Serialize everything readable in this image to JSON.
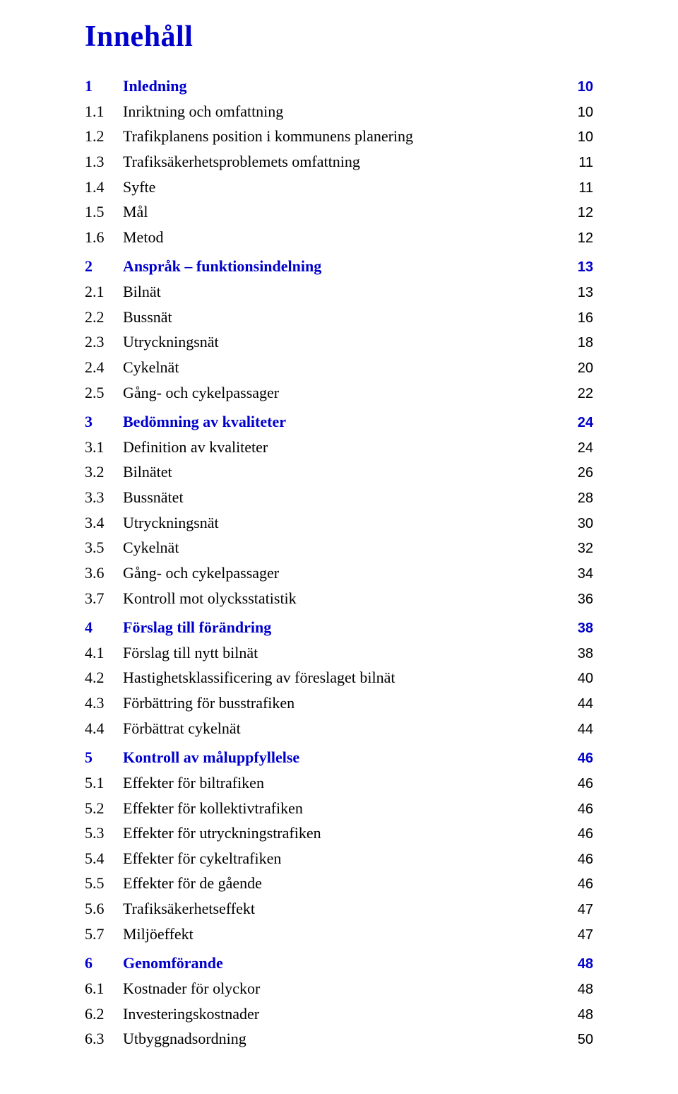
{
  "title": "Innehåll",
  "colors": {
    "heading_blue": "#0000cc",
    "background": "#ffffff",
    "body_text": "#000000"
  },
  "typography": {
    "title_fontsize_pt": 32,
    "body_fontsize_pt": 16,
    "pagenum_fontsize_pt": 15,
    "title_font": "Times New Roman",
    "body_font": "Times New Roman",
    "pagenum_font": "Arial"
  },
  "sections": [
    {
      "num": "1",
      "label": "Inledning",
      "page": "10",
      "blue": true,
      "items": [
        {
          "num": "1.1",
          "label": "Inriktning och omfattning",
          "page": "10"
        },
        {
          "num": "1.2",
          "label": "Trafikplanens position i kommunens planering",
          "page": "10"
        },
        {
          "num": "1.3",
          "label": "Trafiksäkerhetsproblemets omfattning",
          "page": "11"
        },
        {
          "num": "1.4",
          "label": "Syfte",
          "page": "11"
        },
        {
          "num": "1.5",
          "label": "Mål",
          "page": "12"
        },
        {
          "num": "1.6",
          "label": "Metod",
          "page": "12"
        }
      ]
    },
    {
      "num": "2",
      "label": "Anspråk – funktionsindelning",
      "page": "13",
      "blue": true,
      "items": [
        {
          "num": "2.1",
          "label": "Bilnät",
          "page": "13"
        },
        {
          "num": "2.2",
          "label": "Bussnät",
          "page": "16"
        },
        {
          "num": "2.3",
          "label": "Utryckningsnät",
          "page": "18"
        },
        {
          "num": "2.4",
          "label": "Cykelnät",
          "page": "20"
        },
        {
          "num": "2.5",
          "label": "Gång- och cykelpassager",
          "page": "22"
        }
      ]
    },
    {
      "num": "3",
      "label": "Bedömning av kvaliteter",
      "page": "24",
      "blue": true,
      "items": [
        {
          "num": "3.1",
          "label": "Definition av kvaliteter",
          "page": "24"
        },
        {
          "num": "3.2",
          "label": "Bilnätet",
          "page": "26"
        },
        {
          "num": "3.3",
          "label": "Bussnätet",
          "page": "28"
        },
        {
          "num": "3.4",
          "label": "Utryckningsnät",
          "page": "30"
        },
        {
          "num": "3.5",
          "label": "Cykelnät",
          "page": "32"
        },
        {
          "num": "3.6",
          "label": "Gång- och cykelpassager",
          "page": "34"
        },
        {
          "num": "3.7",
          "label": "Kontroll mot olycksstatistik",
          "page": "36"
        }
      ]
    },
    {
      "num": "4",
      "label": "Förslag till förändring",
      "page": "38",
      "blue": true,
      "items": [
        {
          "num": "4.1",
          "label": "Förslag till nytt bilnät",
          "page": "38"
        },
        {
          "num": "4.2",
          "label": "Hastighetsklassificering av föreslaget bilnät",
          "page": "40"
        },
        {
          "num": "4.3",
          "label": "Förbättring för busstrafiken",
          "page": "44"
        },
        {
          "num": "4.4",
          "label": "Förbättrat cykelnät",
          "page": "44"
        }
      ]
    },
    {
      "num": "5",
      "label": "Kontroll av måluppfyllelse",
      "page": "46",
      "blue": true,
      "items": [
        {
          "num": "5.1",
          "label": "Effekter för biltrafiken",
          "page": "46"
        },
        {
          "num": "5.2",
          "label": "Effekter för kollektivtrafiken",
          "page": "46"
        },
        {
          "num": "5.3",
          "label": "Effekter för utryckningstrafiken",
          "page": "46"
        },
        {
          "num": "5.4",
          "label": "Effekter för cykeltrafiken",
          "page": "46"
        },
        {
          "num": "5.5",
          "label": "Effekter för de gående",
          "page": "46"
        },
        {
          "num": "5.6",
          "label": "Trafiksäkerhetseffekt",
          "page": "47"
        },
        {
          "num": "5.7",
          "label": "Miljöeffekt",
          "page": "47"
        }
      ]
    },
    {
      "num": "6",
      "label": "Genomförande",
      "page": "48",
      "blue": true,
      "items": [
        {
          "num": "6.1",
          "label": "Kostnader för olyckor",
          "page": "48"
        },
        {
          "num": "6.2",
          "label": "Investeringskostnader",
          "page": "48"
        },
        {
          "num": "6.3",
          "label": "Utbyggnadsordning",
          "page": "50"
        }
      ]
    }
  ]
}
